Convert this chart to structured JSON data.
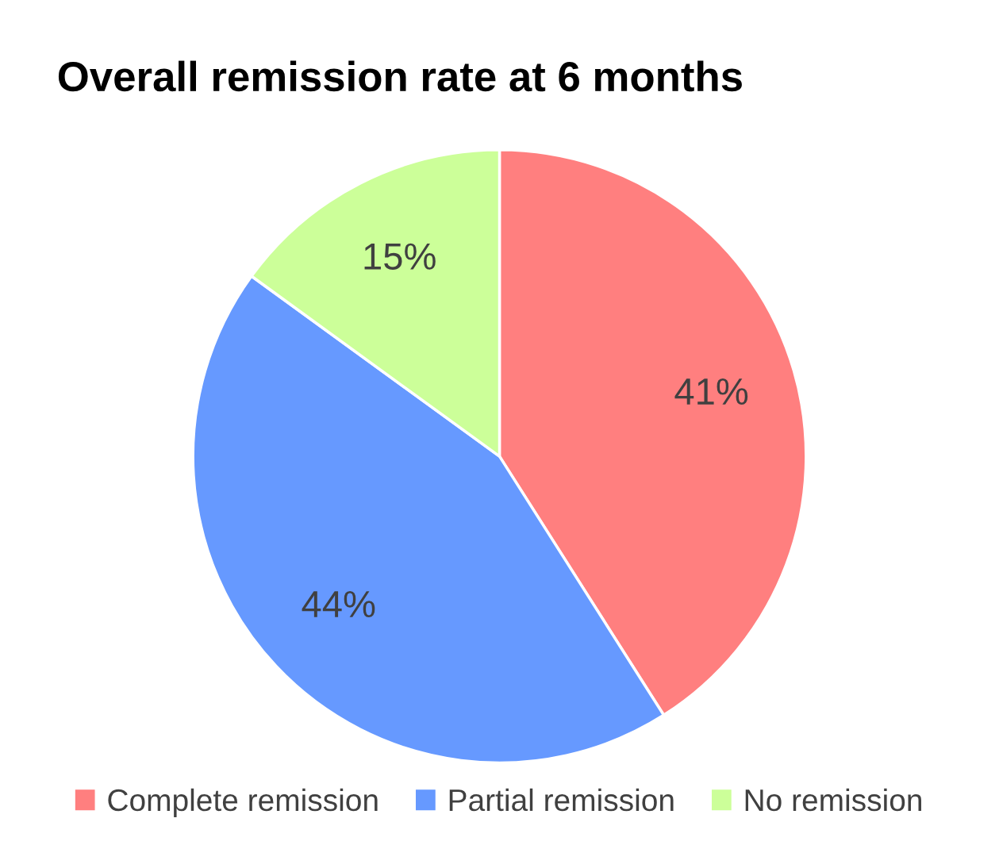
{
  "chart_data": {
    "type": "pie",
    "title": "Overall remission rate at 6 months",
    "categories": [
      "Complete remission",
      "Partial remission",
      "No remission"
    ],
    "values": [
      41,
      44,
      15
    ],
    "colors": [
      "#ff7f7f",
      "#6699ff",
      "#ccff99"
    ],
    "value_labels": [
      "41%",
      "44%",
      "15%"
    ],
    "legend": "bottom"
  }
}
